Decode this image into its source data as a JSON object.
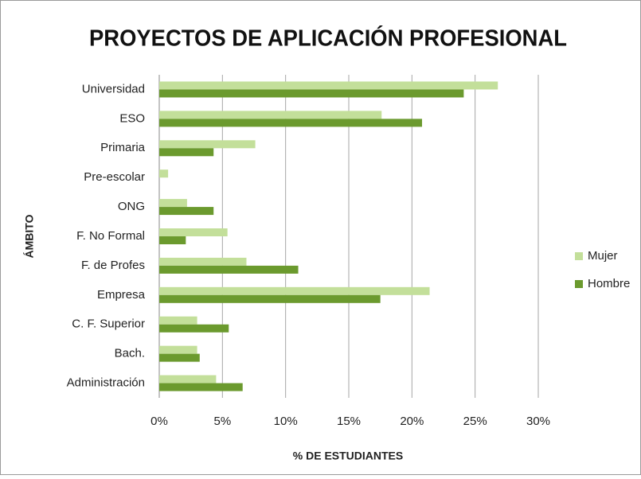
{
  "chart_data": {
    "type": "bar",
    "orientation": "horizontal",
    "title": "PROYECTOS DE APLICACIÓN PROFESIONAL",
    "xlabel": "% DE ESTUDIANTES",
    "ylabel": "ÁMBITO",
    "categories": [
      "Universidad",
      "ESO",
      "Primaria",
      "Pre-escolar",
      "ONG",
      "F. No Formal",
      "F. de Profes",
      "Empresa",
      "C. F. Superior",
      "Bach.",
      "Administración"
    ],
    "series": [
      {
        "name": "Mujer",
        "color": "#c3df9a",
        "values": [
          26.8,
          17.6,
          7.6,
          0.7,
          2.2,
          5.4,
          6.9,
          21.4,
          3.0,
          3.0,
          4.5
        ]
      },
      {
        "name": "Hombre",
        "color": "#6b9a2e",
        "values": [
          24.1,
          20.8,
          4.3,
          0,
          4.3,
          2.1,
          11.0,
          17.5,
          5.5,
          3.2,
          6.6
        ]
      }
    ],
    "xlim": [
      0,
      30
    ],
    "xticks": [
      {
        "value": 0,
        "label": "0%"
      },
      {
        "value": 5,
        "label": "5%"
      },
      {
        "value": 10,
        "label": "10%"
      },
      {
        "value": 15,
        "label": "15%"
      },
      {
        "value": 20,
        "label": "20%"
      },
      {
        "value": 25,
        "label": "25%"
      },
      {
        "value": 30,
        "label": "30%"
      }
    ],
    "grid": true,
    "legend": "right"
  }
}
